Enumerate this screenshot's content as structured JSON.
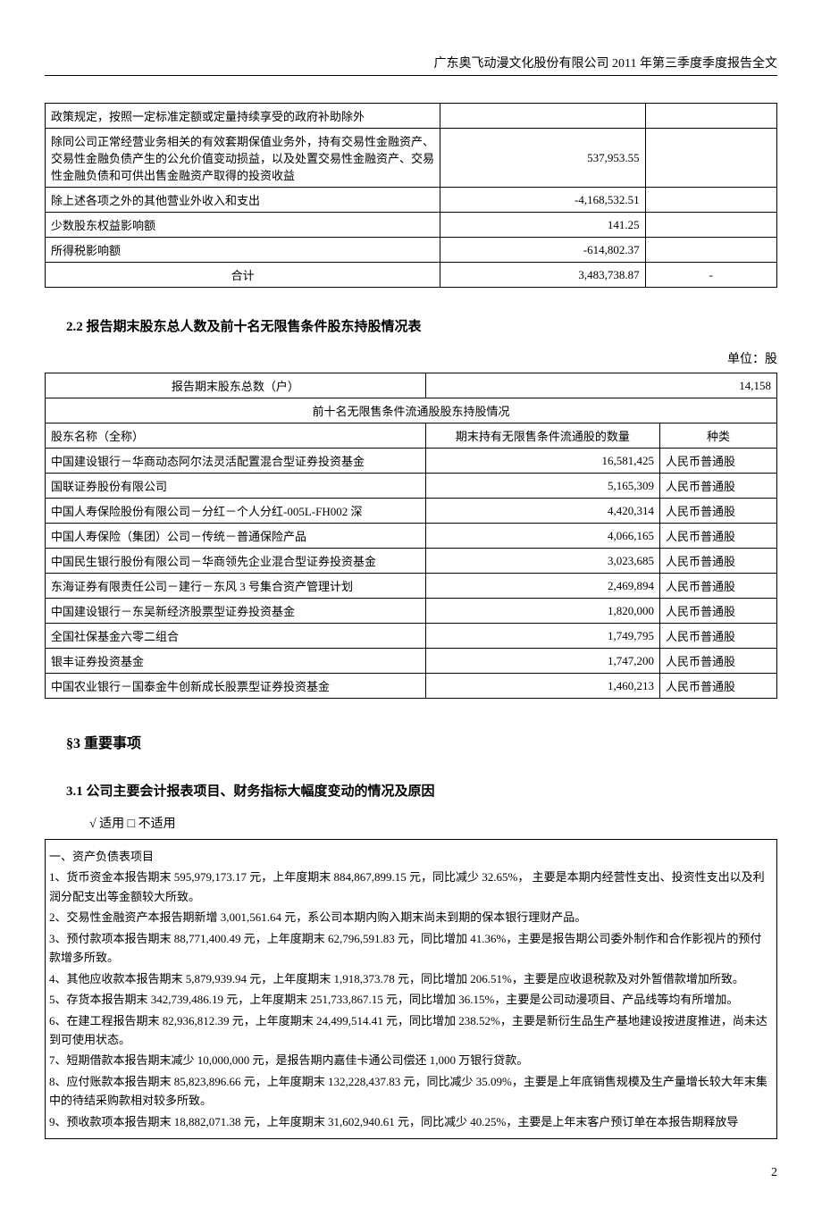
{
  "header": "广东奥飞动漫文化股份有限公司 2011 年第三季度季度报告全文",
  "table1": {
    "rows": [
      {
        "desc": "政策规定，按照一定标准定额或定量持续享受的政府补助除外",
        "val": "",
        "note": ""
      },
      {
        "desc": "除同公司正常经营业务相关的有效套期保值业务外，持有交易性金融资产、交易性金融负债产生的公允价值变动损益，以及处置交易性金融资产、交易性金融负债和可供出售金融资产取得的投资收益",
        "val": "537,953.55",
        "note": ""
      },
      {
        "desc": "除上述各项之外的其他营业外收入和支出",
        "val": "-4,168,532.51",
        "note": ""
      },
      {
        "desc": "少数股东权益影响额",
        "val": "141.25",
        "note": ""
      },
      {
        "desc": "所得税影响额",
        "val": "-614,802.37",
        "note": ""
      }
    ],
    "total_label": "合计",
    "total_val": "3,483,738.87",
    "total_note": "-"
  },
  "section22_title": "2.2 报告期末股东总人数及前十名无限售条件股东持股情况表",
  "unit_shares": "单位：股",
  "table2": {
    "total_label": "报告期末股东总数（户）",
    "total_value": "14,158",
    "sub_header": "前十名无限售条件流通股股东持股情况",
    "col_name": "股东名称（全称）",
    "col_qty": "期末持有无限售条件流通股的数量",
    "col_type": "种类",
    "rows": [
      {
        "name": "中国建设银行－华商动态阿尔法灵活配置混合型证券投资基金",
        "qty": "16,581,425",
        "type": "人民币普通股"
      },
      {
        "name": "国联证券股份有限公司",
        "qty": "5,165,309",
        "type": "人民币普通股"
      },
      {
        "name": "中国人寿保险股份有限公司－分红－个人分红-005L-FH002 深",
        "qty": "4,420,314",
        "type": "人民币普通股"
      },
      {
        "name": "中国人寿保险（集团）公司－传统－普通保险产品",
        "qty": "4,066,165",
        "type": "人民币普通股"
      },
      {
        "name": "中国民生银行股份有限公司－华商领先企业混合型证券投资基金",
        "qty": "3,023,685",
        "type": "人民币普通股"
      },
      {
        "name": "东海证券有限责任公司－建行－东风 3 号集合资产管理计划",
        "qty": "2,469,894",
        "type": "人民币普通股"
      },
      {
        "name": "中国建设银行－东吴新经济股票型证券投资基金",
        "qty": "1,820,000",
        "type": "人民币普通股"
      },
      {
        "name": "全国社保基金六零二组合",
        "qty": "1,749,795",
        "type": "人民币普通股"
      },
      {
        "name": "银丰证券投资基金",
        "qty": "1,747,200",
        "type": "人民币普通股"
      },
      {
        "name": "中国农业银行－国泰金牛创新成长股票型证券投资基金",
        "qty": "1,460,213",
        "type": "人民币普通股"
      }
    ]
  },
  "section3_title": "§3 重要事项",
  "section31_title": "3.1 公司主要会计报表项目、财务指标大幅度变动的情况及原因",
  "applicable_text": "√ 适用 □ 不适用",
  "notes": {
    "heading": "一、资产负债表项目",
    "items": [
      "1、货币资金本报告期末 595,979,173.17 元，上年度期末 884,867,899.15 元，同比减少 32.65%， 主要是本期内经营性支出、投资性支出以及利润分配支出等金额较大所致。",
      "2、交易性金融资产本报告期新增 3,001,561.64 元，系公司本期内购入期末尚未到期的保本银行理财产品。",
      "3、预付款项本报告期末 88,771,400.49 元，上年度期末 62,796,591.83 元，同比增加 41.36%，主要是报告期公司委外制作和合作影视片的预付款增多所致。",
      "4、其他应收款本报告期末 5,879,939.94 元，上年度期末 1,918,373.78 元，同比增加 206.51%，主要是应收退税款及对外暂借款增加所致。",
      "5、存货本报告期末 342,739,486.19 元，上年度期末 251,733,867.15 元，同比增加 36.15%，主要是公司动漫项目、产品线等均有所增加。",
      "6、在建工程报告期末 82,936,812.39 元，上年度期末 24,499,514.41 元，同比增加 238.52%，主要是新衍生品生产基地建设按进度推进，尚未达到可使用状态。",
      "7、短期借款本报告期末减少 10,000,000 元，是报告期内嘉佳卡通公司偿还 1,000 万银行贷款。",
      "8、应付账款本报告期末 85,823,896.66 元，上年度期末 132,228,437.83 元，同比减少 35.09%，主要是上年底销售规模及生产量增长较大年末集中的待结采购款相对较多所致。",
      "9、预收款项本报告期末 18,882,071.38 元，上年度期末 31,602,940.61 元，同比减少 40.25%，主要是上年末客户预订单在本报告期释放导"
    ]
  },
  "page_number": "2"
}
